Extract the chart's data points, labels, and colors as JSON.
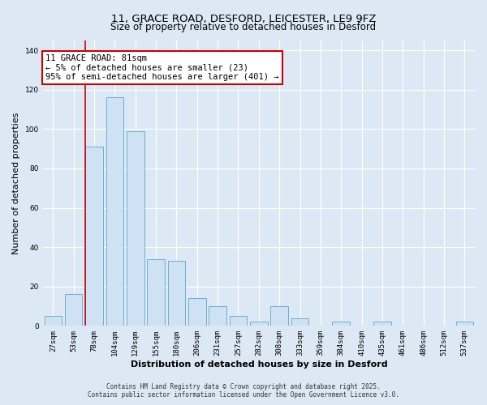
{
  "title1": "11, GRACE ROAD, DESFORD, LEICESTER, LE9 9FZ",
  "title2": "Size of property relative to detached houses in Desford",
  "xlabel": "Distribution of detached houses by size in Desford",
  "ylabel": "Number of detached properties",
  "bar_labels": [
    "27sqm",
    "53sqm",
    "78sqm",
    "104sqm",
    "129sqm",
    "155sqm",
    "180sqm",
    "206sqm",
    "231sqm",
    "257sqm",
    "282sqm",
    "308sqm",
    "333sqm",
    "359sqm",
    "384sqm",
    "410sqm",
    "435sqm",
    "461sqm",
    "486sqm",
    "512sqm",
    "537sqm"
  ],
  "bar_values": [
    5,
    16,
    91,
    116,
    99,
    34,
    33,
    14,
    10,
    5,
    2,
    10,
    4,
    0,
    2,
    0,
    2,
    0,
    0,
    0,
    2
  ],
  "bar_color": "#cfe2f3",
  "bar_edge_color": "#6baed6",
  "vline_color": "#cc0000",
  "annotation_title": "11 GRACE ROAD: 81sqm",
  "annotation_line1": "← 5% of detached houses are smaller (23)",
  "annotation_line2": "95% of semi-detached houses are larger (401) →",
  "annotation_box_color": "#ffffff",
  "annotation_box_edge": "#cc0000",
  "ylim": [
    0,
    145
  ],
  "yticks": [
    0,
    20,
    40,
    60,
    80,
    100,
    120,
    140
  ],
  "footer1": "Contains HM Land Registry data © Crown copyright and database right 2025.",
  "footer2": "Contains public sector information licensed under the Open Government Licence v3.0.",
  "background_color": "#dce9f5",
  "grid_color": "#ffffff",
  "title1_fontsize": 9.5,
  "title2_fontsize": 8.5,
  "axis_fontsize": 8,
  "tick_fontsize": 6.5,
  "footer_fontsize": 5.5,
  "ann_fontsize": 7.5,
  "vline_x_index": 2
}
